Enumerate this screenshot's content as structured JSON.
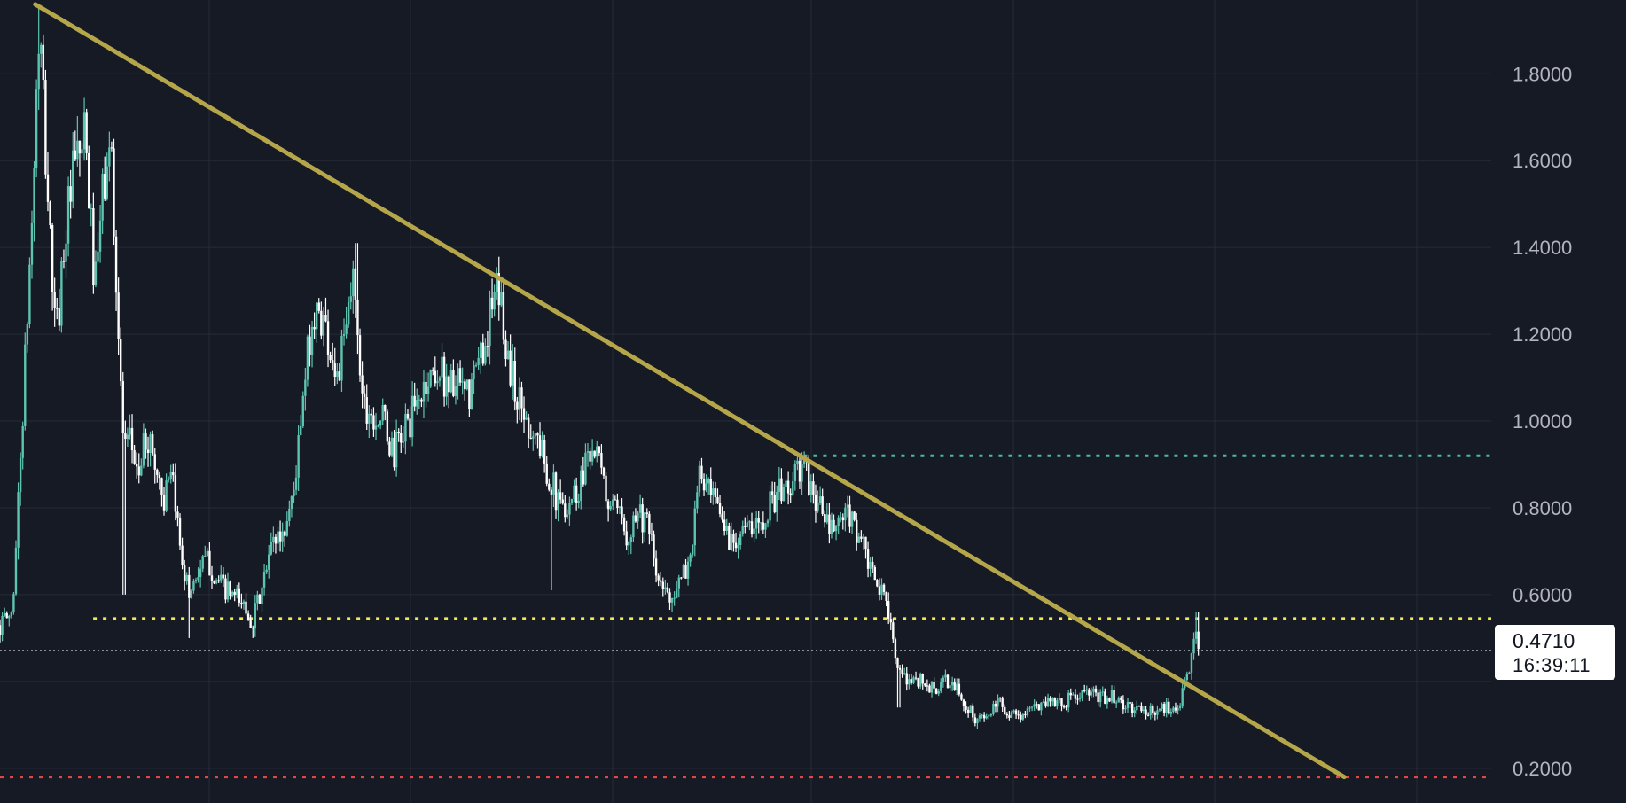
{
  "colors": {
    "background": "#161a25",
    "grid": "#262b38",
    "candle_up": "#5ec4b2",
    "candle_down": "#ffffff",
    "trendline": "#b5a64a",
    "support_level": "#f2e94e",
    "resistance_level": "#4db6a5",
    "low_level": "#e04848",
    "current_price_line": "#d1d4dc",
    "axis_text": "#b2b5be"
  },
  "price_box": {
    "price": "0.4710",
    "countdown": "16:39:11"
  },
  "chart_data": {
    "type": "candlestick",
    "title": "",
    "y_axis": {
      "position": "right",
      "ylim": [
        0.12,
        1.97
      ],
      "ticks": [
        {
          "value": 0.2,
          "label": "0.2000"
        },
        {
          "value": 0.6,
          "label": "0.6000"
        },
        {
          "value": 0.8,
          "label": "0.8000"
        },
        {
          "value": 1.0,
          "label": "1.0000"
        },
        {
          "value": 1.2,
          "label": "1.2000"
        },
        {
          "value": 1.4,
          "label": "1.4000"
        },
        {
          "value": 1.6,
          "label": "1.6000"
        },
        {
          "value": 1.8,
          "label": "1.8000"
        }
      ]
    },
    "x_axis": {
      "labels_visible": false,
      "xlim": [
        0,
        1440
      ]
    },
    "grid": true,
    "series_close_path": [
      {
        "x": 0,
        "y": 0.53
      },
      {
        "x": 12,
        "y": 0.56
      },
      {
        "x": 22,
        "y": 1.02
      },
      {
        "x": 30,
        "y": 1.42
      },
      {
        "x": 38,
        "y": 1.9
      },
      {
        "x": 46,
        "y": 1.52
      },
      {
        "x": 54,
        "y": 1.18
      },
      {
        "x": 62,
        "y": 1.42
      },
      {
        "x": 72,
        "y": 1.58
      },
      {
        "x": 82,
        "y": 1.65
      },
      {
        "x": 92,
        "y": 1.3
      },
      {
        "x": 100,
        "y": 1.55
      },
      {
        "x": 108,
        "y": 1.62
      },
      {
        "x": 114,
        "y": 1.2
      },
      {
        "x": 120,
        "y": 0.92
      },
      {
        "x": 126,
        "y": 0.95
      },
      {
        "x": 134,
        "y": 0.88
      },
      {
        "x": 142,
        "y": 0.97
      },
      {
        "x": 150,
        "y": 0.9
      },
      {
        "x": 158,
        "y": 0.82
      },
      {
        "x": 166,
        "y": 0.86
      },
      {
        "x": 174,
        "y": 0.72
      },
      {
        "x": 182,
        "y": 0.6
      },
      {
        "x": 190,
        "y": 0.65
      },
      {
        "x": 200,
        "y": 0.68
      },
      {
        "x": 210,
        "y": 0.63
      },
      {
        "x": 222,
        "y": 0.6
      },
      {
        "x": 234,
        "y": 0.58
      },
      {
        "x": 244,
        "y": 0.54
      },
      {
        "x": 254,
        "y": 0.62
      },
      {
        "x": 264,
        "y": 0.73
      },
      {
        "x": 274,
        "y": 0.74
      },
      {
        "x": 284,
        "y": 0.85
      },
      {
        "x": 292,
        "y": 1.02
      },
      {
        "x": 300,
        "y": 1.22
      },
      {
        "x": 310,
        "y": 1.25
      },
      {
        "x": 318,
        "y": 1.18
      },
      {
        "x": 326,
        "y": 1.1
      },
      {
        "x": 334,
        "y": 1.2
      },
      {
        "x": 342,
        "y": 1.35
      },
      {
        "x": 350,
        "y": 1.05
      },
      {
        "x": 360,
        "y": 1.02
      },
      {
        "x": 370,
        "y": 1.0
      },
      {
        "x": 380,
        "y": 0.92
      },
      {
        "x": 390,
        "y": 0.98
      },
      {
        "x": 400,
        "y": 1.02
      },
      {
        "x": 410,
        "y": 1.08
      },
      {
        "x": 420,
        "y": 1.12
      },
      {
        "x": 430,
        "y": 1.1
      },
      {
        "x": 440,
        "y": 1.08
      },
      {
        "x": 452,
        "y": 1.05
      },
      {
        "x": 464,
        "y": 1.15
      },
      {
        "x": 474,
        "y": 1.25
      },
      {
        "x": 482,
        "y": 1.3
      },
      {
        "x": 490,
        "y": 1.15
      },
      {
        "x": 500,
        "y": 1.05
      },
      {
        "x": 510,
        "y": 1.0
      },
      {
        "x": 520,
        "y": 0.95
      },
      {
        "x": 530,
        "y": 0.88
      },
      {
        "x": 540,
        "y": 0.8
      },
      {
        "x": 550,
        "y": 0.82
      },
      {
        "x": 560,
        "y": 0.85
      },
      {
        "x": 568,
        "y": 0.95
      },
      {
        "x": 576,
        "y": 0.92
      },
      {
        "x": 586,
        "y": 0.82
      },
      {
        "x": 596,
        "y": 0.78
      },
      {
        "x": 606,
        "y": 0.74
      },
      {
        "x": 616,
        "y": 0.8
      },
      {
        "x": 626,
        "y": 0.75
      },
      {
        "x": 636,
        "y": 0.62
      },
      {
        "x": 646,
        "y": 0.6
      },
      {
        "x": 656,
        "y": 0.62
      },
      {
        "x": 666,
        "y": 0.68
      },
      {
        "x": 676,
        "y": 0.88
      },
      {
        "x": 686,
        "y": 0.82
      },
      {
        "x": 696,
        "y": 0.78
      },
      {
        "x": 706,
        "y": 0.72
      },
      {
        "x": 716,
        "y": 0.76
      },
      {
        "x": 726,
        "y": 0.74
      },
      {
        "x": 736,
        "y": 0.78
      },
      {
        "x": 746,
        "y": 0.82
      },
      {
        "x": 756,
        "y": 0.84
      },
      {
        "x": 766,
        "y": 0.86
      },
      {
        "x": 774,
        "y": 0.9
      },
      {
        "x": 782,
        "y": 0.85
      },
      {
        "x": 792,
        "y": 0.8
      },
      {
        "x": 802,
        "y": 0.74
      },
      {
        "x": 812,
        "y": 0.77
      },
      {
        "x": 822,
        "y": 0.78
      },
      {
        "x": 832,
        "y": 0.72
      },
      {
        "x": 842,
        "y": 0.64
      },
      {
        "x": 852,
        "y": 0.6
      },
      {
        "x": 860,
        "y": 0.56
      },
      {
        "x": 866,
        "y": 0.42
      },
      {
        "x": 874,
        "y": 0.4
      },
      {
        "x": 884,
        "y": 0.41
      },
      {
        "x": 894,
        "y": 0.39
      },
      {
        "x": 904,
        "y": 0.38
      },
      {
        "x": 914,
        "y": 0.4
      },
      {
        "x": 924,
        "y": 0.38
      },
      {
        "x": 934,
        "y": 0.34
      },
      {
        "x": 944,
        "y": 0.31
      },
      {
        "x": 954,
        "y": 0.32
      },
      {
        "x": 964,
        "y": 0.35
      },
      {
        "x": 974,
        "y": 0.33
      },
      {
        "x": 984,
        "y": 0.32
      },
      {
        "x": 994,
        "y": 0.33
      },
      {
        "x": 1004,
        "y": 0.35
      },
      {
        "x": 1014,
        "y": 0.36
      },
      {
        "x": 1024,
        "y": 0.35
      },
      {
        "x": 1034,
        "y": 0.36
      },
      {
        "x": 1044,
        "y": 0.37
      },
      {
        "x": 1054,
        "y": 0.37
      },
      {
        "x": 1064,
        "y": 0.36
      },
      {
        "x": 1074,
        "y": 0.37
      },
      {
        "x": 1084,
        "y": 0.34
      },
      {
        "x": 1094,
        "y": 0.34
      },
      {
        "x": 1104,
        "y": 0.33
      },
      {
        "x": 1114,
        "y": 0.33
      },
      {
        "x": 1124,
        "y": 0.34
      },
      {
        "x": 1134,
        "y": 0.34
      },
      {
        "x": 1142,
        "y": 0.37
      },
      {
        "x": 1148,
        "y": 0.42
      },
      {
        "x": 1154,
        "y": 0.52
      },
      {
        "x": 1158,
        "y": 0.49
      }
    ],
    "extremes": [
      {
        "x": 38,
        "y": 1.95,
        "kind": "high"
      },
      {
        "x": 120,
        "y": 0.6,
        "kind": "low"
      },
      {
        "x": 182,
        "y": 0.5,
        "kind": "low"
      },
      {
        "x": 244,
        "y": 0.5,
        "kind": "low"
      },
      {
        "x": 344,
        "y": 1.41,
        "kind": "high"
      },
      {
        "x": 482,
        "y": 1.35,
        "kind": "high"
      },
      {
        "x": 532,
        "y": 0.61,
        "kind": "low"
      },
      {
        "x": 776,
        "y": 0.93,
        "kind": "high"
      },
      {
        "x": 868,
        "y": 0.34,
        "kind": "low"
      },
      {
        "x": 944,
        "y": 0.29,
        "kind": "low"
      },
      {
        "x": 1156,
        "y": 0.56,
        "kind": "high"
      }
    ],
    "trendline": {
      "x1": 34,
      "y1": 1.96,
      "x2": 1298,
      "y2": 0.18
    },
    "levels": [
      {
        "name": "support",
        "price": 0.545,
        "x_start": 90,
        "x_end": 1440,
        "style": "dotted",
        "color": "#f2e94e"
      },
      {
        "name": "resistance",
        "price": 0.92,
        "x_start": 776,
        "x_end": 1440,
        "style": "dotted",
        "color": "#4db6a5"
      },
      {
        "name": "low",
        "price": 0.18,
        "x_start": 0,
        "x_end": 1440,
        "style": "dotted",
        "color": "#e04848"
      },
      {
        "name": "current",
        "price": 0.471,
        "x_start": 0,
        "x_end": 1440,
        "style": "dotted",
        "color": "#d1d4dc"
      }
    ]
  }
}
